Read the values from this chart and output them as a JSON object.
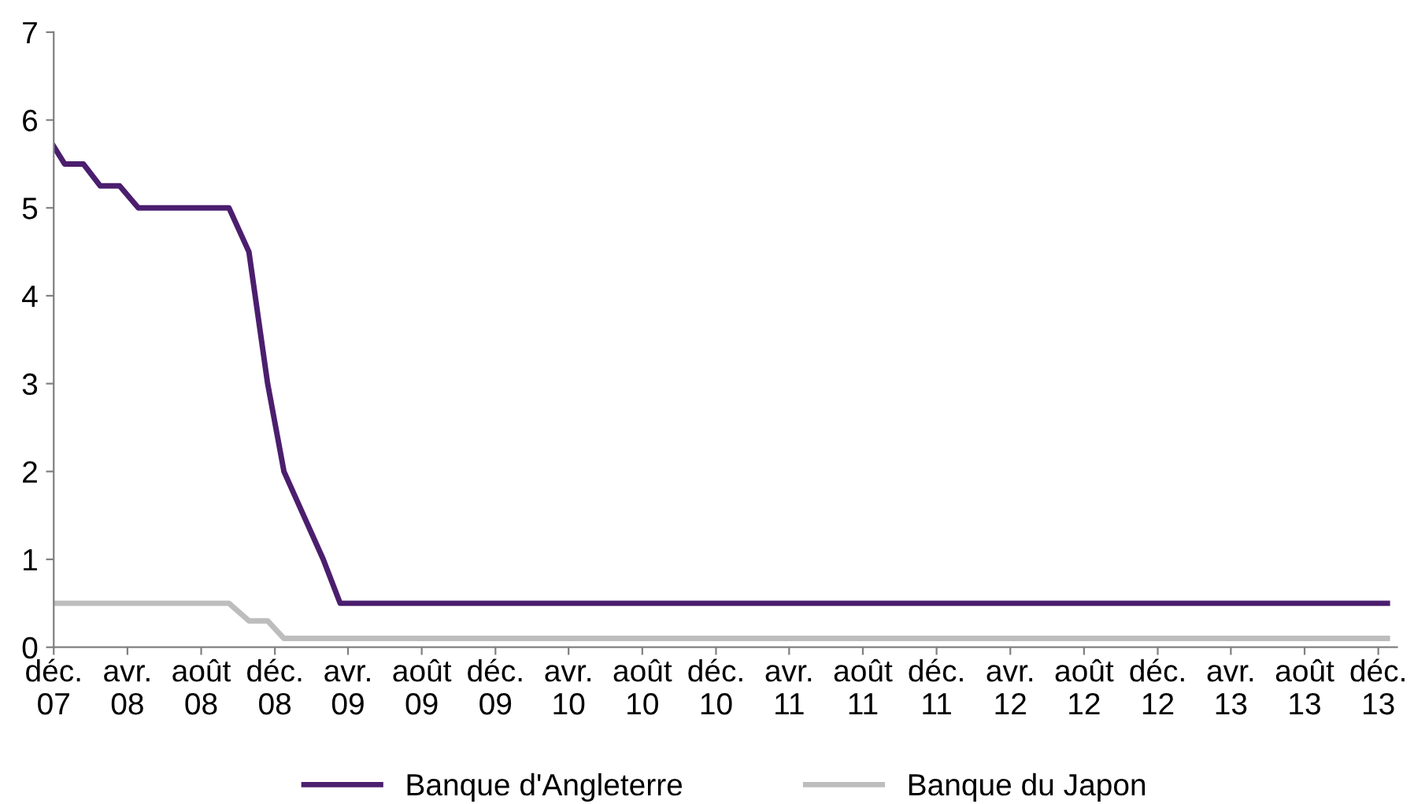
{
  "chart_data": {
    "type": "line",
    "xlim": [
      "2007-12-01",
      "2014-01-01"
    ],
    "xticks": [
      {
        "value": "2007-12-01",
        "label": "déc.\n07"
      },
      {
        "value": "2008-04-01",
        "label": "avr.\n08"
      },
      {
        "value": "2008-08-01",
        "label": "août\n08"
      },
      {
        "value": "2008-12-01",
        "label": "déc.\n08"
      },
      {
        "value": "2009-04-01",
        "label": "avr.\n09"
      },
      {
        "value": "2009-08-01",
        "label": "août\n09"
      },
      {
        "value": "2009-12-01",
        "label": "déc.\n09"
      },
      {
        "value": "2010-04-01",
        "label": "avr.\n10"
      },
      {
        "value": "2010-08-01",
        "label": "août\n10"
      },
      {
        "value": "2010-12-01",
        "label": "déc.\n10"
      },
      {
        "value": "2011-04-01",
        "label": "avr.\n11"
      },
      {
        "value": "2011-08-01",
        "label": "août\n11"
      },
      {
        "value": "2011-12-01",
        "label": "déc.\n11"
      },
      {
        "value": "2012-04-01",
        "label": "avr.\n12"
      },
      {
        "value": "2012-08-01",
        "label": "août\n12"
      },
      {
        "value": "2012-12-01",
        "label": "déc.\n12"
      },
      {
        "value": "2013-04-01",
        "label": "avr.\n13"
      },
      {
        "value": "2013-08-01",
        "label": "août\n13"
      },
      {
        "value": "2013-12-01",
        "label": "déc.\n13"
      }
    ],
    "ylim": [
      0,
      7
    ],
    "yticks": [
      0,
      1,
      2,
      3,
      4,
      5,
      6,
      7
    ],
    "grid": false,
    "legend": "bottom",
    "line_style": "solid",
    "series": [
      {
        "name": "Banque d'Angleterre",
        "color": "#4b1e6e",
        "x": [
          "2007-12-01",
          "2007-12-19",
          "2008-01-19",
          "2008-02-16",
          "2008-03-19",
          "2008-04-19",
          "2008-09-16",
          "2008-10-19",
          "2008-11-19",
          "2008-12-16",
          "2009-02-19",
          "2009-03-19",
          "2013-12-16"
        ],
        "values": [
          5.7,
          5.5,
          5.5,
          5.25,
          5.25,
          5.0,
          5.0,
          4.5,
          3.0,
          2.0,
          1.0,
          0.5,
          0.5
        ]
      },
      {
        "name": "Banque du Japon",
        "color": "#bdbdbd",
        "x": [
          "2007-12-01",
          "2008-09-16",
          "2008-10-19",
          "2008-11-19",
          "2008-12-16",
          "2013-12-16"
        ],
        "values": [
          0.5,
          0.5,
          0.3,
          0.3,
          0.1,
          0.1
        ]
      }
    ]
  }
}
